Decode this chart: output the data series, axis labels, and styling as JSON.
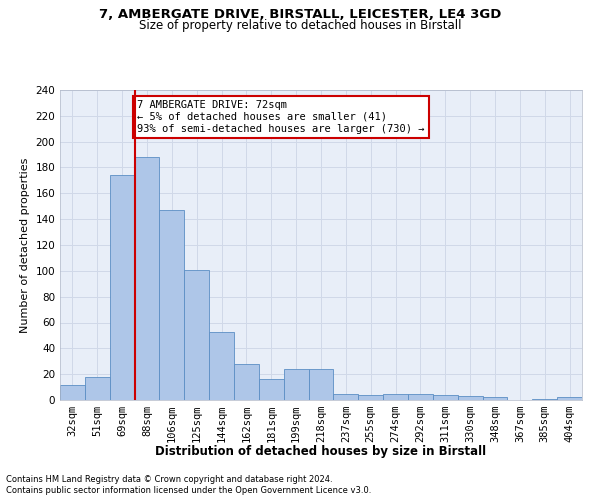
{
  "title1": "7, AMBERGATE DRIVE, BIRSTALL, LEICESTER, LE4 3GD",
  "title2": "Size of property relative to detached houses in Birstall",
  "xlabel": "Distribution of detached houses by size in Birstall",
  "ylabel": "Number of detached properties",
  "footnote1": "Contains HM Land Registry data © Crown copyright and database right 2024.",
  "footnote2": "Contains public sector information licensed under the Open Government Licence v3.0.",
  "bar_labels": [
    "32sqm",
    "51sqm",
    "69sqm",
    "88sqm",
    "106sqm",
    "125sqm",
    "144sqm",
    "162sqm",
    "181sqm",
    "199sqm",
    "218sqm",
    "237sqm",
    "255sqm",
    "274sqm",
    "292sqm",
    "311sqm",
    "330sqm",
    "348sqm",
    "367sqm",
    "385sqm",
    "404sqm"
  ],
  "bar_values": [
    12,
    18,
    174,
    188,
    147,
    101,
    53,
    28,
    16,
    24,
    24,
    5,
    4,
    5,
    5,
    4,
    3,
    2,
    0,
    1,
    2
  ],
  "bar_color": "#aec6e8",
  "bar_edge_color": "#5b8ec4",
  "vline_color": "#cc0000",
  "vline_x": 2.5,
  "annotation_text": "7 AMBERGATE DRIVE: 72sqm\n← 5% of detached houses are smaller (41)\n93% of semi-detached houses are larger (730) →",
  "annotation_box_facecolor": "#ffffff",
  "annotation_box_edgecolor": "#cc0000",
  "ylim": [
    0,
    240
  ],
  "yticks": [
    0,
    20,
    40,
    60,
    80,
    100,
    120,
    140,
    160,
    180,
    200,
    220,
    240
  ],
  "grid_color": "#d0d8e8",
  "plot_bg_color": "#e8eef8",
  "fig_bg_color": "#ffffff",
  "title1_fontsize": 9.5,
  "title2_fontsize": 8.5,
  "xlabel_fontsize": 8.5,
  "ylabel_fontsize": 8,
  "tick_fontsize": 7.5,
  "annot_fontsize": 7.5,
  "footnote_fontsize": 6.0
}
